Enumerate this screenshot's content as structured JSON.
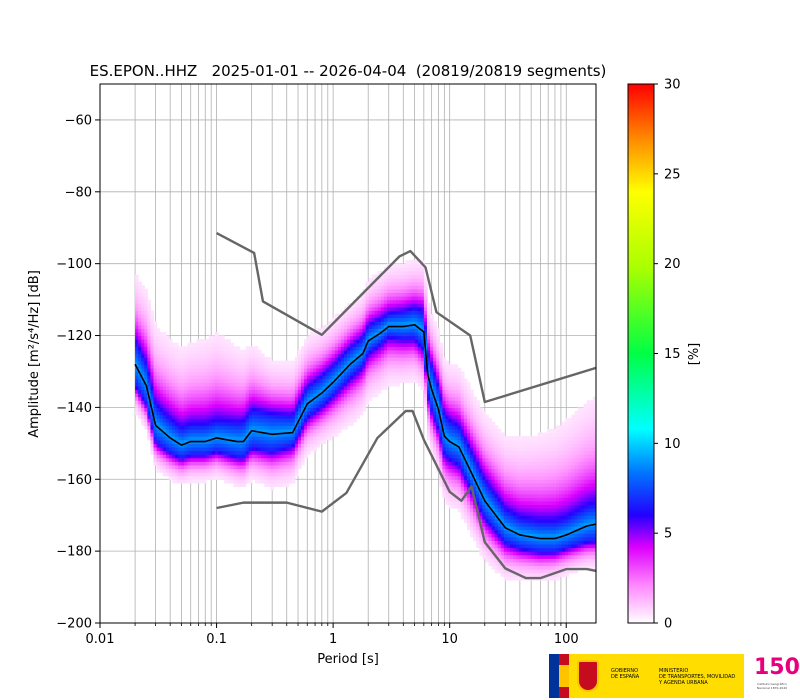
{
  "chart_data": {
    "type": "heatmap",
    "title": "ES.EPON..HHZ   2025-01-01 -- 2026-04-04  (20819/20819 segments)",
    "xlabel": "Period [s]",
    "ylabel": "Amplitude [m²/s⁴/Hz] [dB]",
    "xscale": "log",
    "xlim": [
      0.01,
      180
    ],
    "ylim": [
      -200,
      -50
    ],
    "xticks": [
      0.01,
      0.1,
      1,
      10,
      100
    ],
    "xtick_labels": [
      "0.01",
      "0.1",
      "1",
      "10",
      "100"
    ],
    "yticks": [
      -200,
      -180,
      -160,
      -140,
      -120,
      -100,
      -80,
      -60
    ],
    "ytick_labels": [
      "−200",
      "−180",
      "−160",
      "−140",
      "−120",
      "−100",
      "−80",
      "−60"
    ],
    "grid": true,
    "colorbar": {
      "label": "[%]",
      "range": [
        0,
        30
      ],
      "ticks": [
        0,
        5,
        10,
        15,
        20,
        25,
        30
      ],
      "tick_labels": [
        "0",
        "5",
        "10",
        "15",
        "20",
        "25",
        "30"
      ]
    },
    "series": [
      {
        "x": [
          0.1,
          0.21,
          0.25,
          0.8,
          3.7,
          4.6,
          6.2,
          7.7,
          15.0,
          20.0,
          180.0
        ],
        "y": [
          -91.5,
          -97.0,
          -110.5,
          -119.8,
          -98.0,
          -96.5,
          -101.0,
          -113.5,
          -120.0,
          -138.5,
          -129.0
        ]
      },
      {
        "x": [
          0.1,
          0.17,
          0.4,
          0.8,
          1.3,
          2.4,
          4.2,
          4.8,
          6.0,
          10.0,
          12.6,
          15.4,
          20.0,
          30.0,
          45.0,
          60.0,
          100.0,
          150.0,
          180.0
        ],
        "y": [
          -168.0,
          -166.5,
          -166.5,
          -169.0,
          -163.8,
          -148.5,
          -141.0,
          -141.0,
          -149.0,
          -163.5,
          -166.0,
          -162.0,
          -177.5,
          -184.8,
          -187.5,
          -187.5,
          -185.0,
          -185.0,
          -185.5
        ]
      },
      {
        "x": [
          0.02,
          0.025,
          0.03,
          0.04,
          0.05,
          0.06,
          0.08,
          0.1,
          0.15,
          0.17,
          0.2,
          0.3,
          0.45,
          0.6,
          0.8,
          1.0,
          1.4,
          1.8,
          2.0,
          2.5,
          3.0,
          4.0,
          5.0,
          6.0,
          6.5,
          7.0,
          8.0,
          9.0,
          10.0,
          12.0,
          15.0,
          20.0,
          30.0,
          40.0,
          60.0,
          80.0,
          100.0,
          150.0,
          180.0
        ],
        "y": [
          -128.0,
          -134.0,
          -145.0,
          -148.5,
          -150.5,
          -149.5,
          -149.5,
          -148.5,
          -149.5,
          -149.5,
          -146.5,
          -147.5,
          -147.0,
          -139.0,
          -136.0,
          -133.0,
          -128.0,
          -125.0,
          -121.5,
          -119.5,
          -117.5,
          -117.5,
          -117.0,
          -119.0,
          -131.0,
          -135.0,
          -140.5,
          -148.0,
          -149.5,
          -151.0,
          -157.5,
          -166.0,
          -173.5,
          -175.5,
          -176.5,
          -176.5,
          -175.5,
          -173.0,
          -172.5
        ]
      }
    ]
  },
  "logos": {
    "gov_text": "GOBIERNO\nDE ESPAÑA",
    "ministry_text": "MINISTERIO\nDE TRANSPORTES, MOVILIDAD\nY AGENDA URBANA",
    "anniversary": "150",
    "ign_text": "Instituto Geográfico Nacional 1870-2020",
    "brand_yellow": "#ffdd00",
    "brand_red": "#c60b1e"
  }
}
